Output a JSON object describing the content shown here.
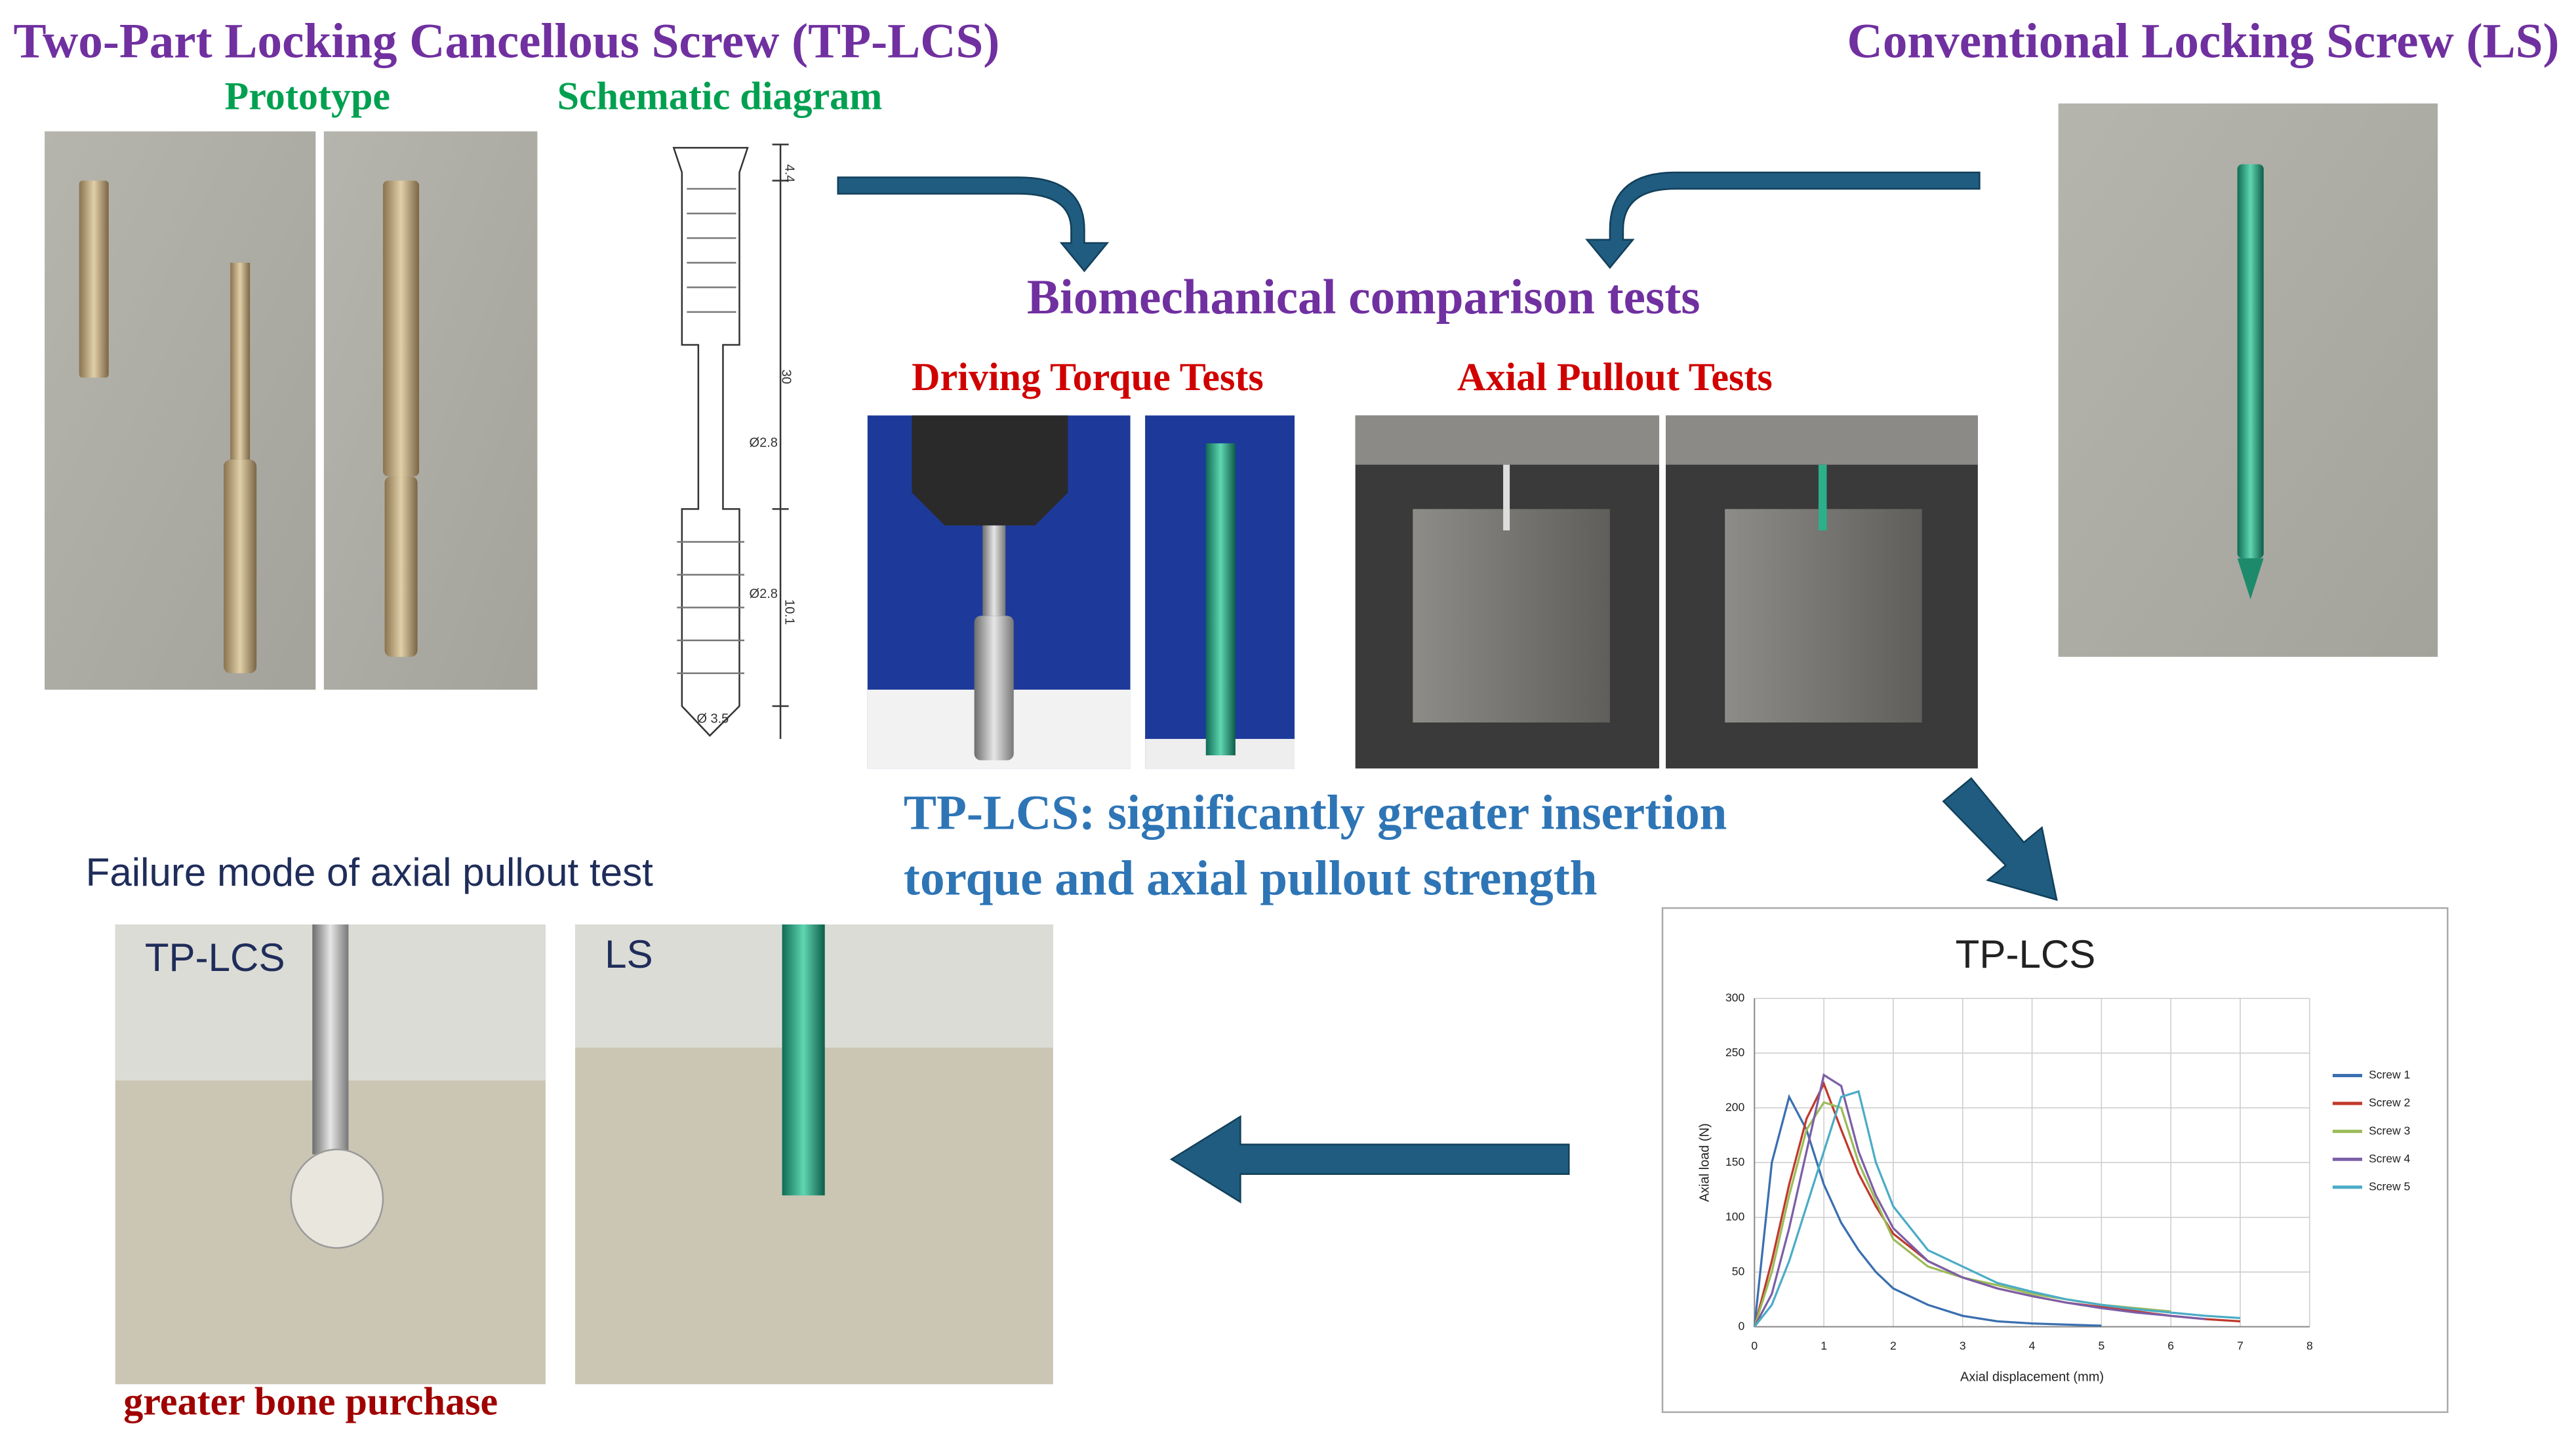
{
  "header": {
    "left_title": "Two-Part Locking Cancellous Screw (TP-LCS)",
    "right_title": "Conventional Locking Screw (LS)"
  },
  "prototype_label": "Prototype",
  "schematic": {
    "title": "Schematic diagram",
    "dims": [
      "4.4",
      "30",
      "Ø2.8",
      "Ø2.8",
      "10.1",
      "Ø 3.5"
    ]
  },
  "tests": {
    "title": "Biomechanical comparison tests",
    "torque": "Driving Torque Tests",
    "pullout": "Axial Pullout Tests"
  },
  "conclusion": [
    "TP-LCS: significantly greater insertion",
    "torque and axial pullout strength"
  ],
  "failure": {
    "title": "Failure mode of axial pullout test",
    "left_label": "TP-LCS",
    "right_label": "LS",
    "note": "greater bone purchase"
  },
  "chart": {
    "type": "line",
    "title": "TP-LCS",
    "x_label": "Axial displacement (mm)",
    "y_label": "Axial load (N)",
    "x": [
      0,
      0.25,
      0.5,
      0.75,
      1,
      1.25,
      1.5,
      1.75,
      2,
      2.5,
      3,
      3.5,
      4,
      4.5,
      5,
      5.5,
      6,
      6.5,
      7
    ],
    "series": [
      {
        "name": "Screw 1",
        "color": "#3a6fb0",
        "values": [
          0,
          150,
          210,
          180,
          130,
          95,
          70,
          50,
          35,
          20,
          10,
          5,
          3,
          2,
          1,
          null,
          null,
          null,
          null
        ]
      },
      {
        "name": "Screw 2",
        "color": "#c0392b",
        "values": [
          0,
          60,
          130,
          190,
          222,
          180,
          140,
          110,
          85,
          60,
          45,
          35,
          28,
          22,
          18,
          14,
          10,
          7,
          5
        ]
      },
      {
        "name": "Screw 3",
        "color": "#9bbb59",
        "values": [
          0,
          50,
          120,
          180,
          205,
          200,
          150,
          115,
          80,
          55,
          45,
          38,
          30,
          25,
          20,
          17,
          14,
          null,
          null
        ]
      },
      {
        "name": "Screw 4",
        "color": "#7b5ea7",
        "values": [
          0,
          30,
          90,
          160,
          230,
          220,
          160,
          120,
          90,
          60,
          45,
          35,
          28,
          22,
          17,
          13,
          10,
          7,
          null
        ]
      },
      {
        "name": "Screw 5",
        "color": "#4bacc6",
        "values": [
          0,
          20,
          60,
          110,
          160,
          210,
          215,
          150,
          110,
          70,
          55,
          40,
          32,
          25,
          20,
          16,
          13,
          10,
          8
        ]
      }
    ],
    "xlim": [
      0,
      8
    ],
    "ylim": [
      0,
      300
    ],
    "xticks": [
      0,
      1,
      2,
      3,
      4,
      5,
      6,
      7,
      8
    ],
    "yticks": [
      0,
      50,
      100,
      150,
      200,
      250,
      300
    ],
    "grid": true
  }
}
